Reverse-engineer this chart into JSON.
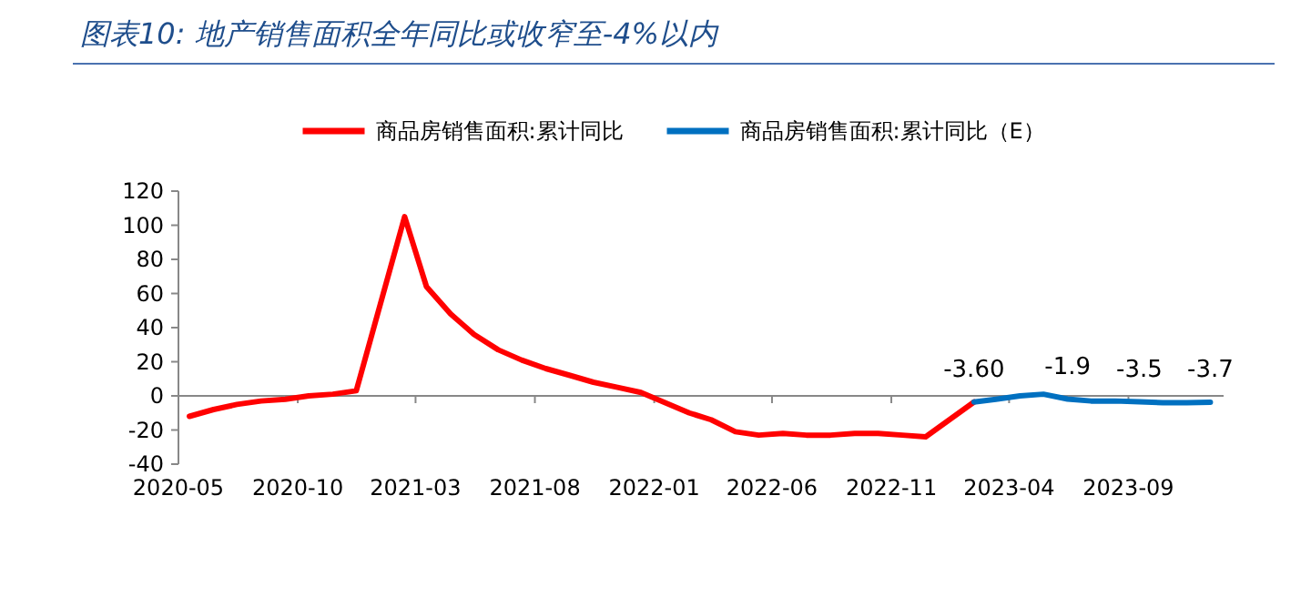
{
  "chart_data": {
    "type": "line",
    "title": "图表10:  地产销售面积全年同比或收窄至-4%以内",
    "xlim": [
      "2020-05",
      "2024-01"
    ],
    "xticks": [
      "2020-05",
      "2020-10",
      "2021-03",
      "2021-08",
      "2022-01",
      "2022-06",
      "2022-11",
      "2023-04",
      "2023-09"
    ],
    "ylim": [
      -40,
      120
    ],
    "yticks": [
      -40,
      -20,
      0,
      20,
      40,
      60,
      80,
      100,
      120
    ],
    "legend": "top",
    "line_style": "solid",
    "marker": "none",
    "series": [
      {
        "name": "商品房销售面积:累计同比",
        "color": "#ff0000",
        "x": [
          "2020-05-15",
          "2020-06-15",
          "2020-07-15",
          "2020-08-15",
          "2020-09-15",
          "2020-10-15",
          "2020-11-15",
          "2020-12-15",
          "2021-02-15",
          "2021-03-15",
          "2021-04-15",
          "2021-05-15",
          "2021-06-15",
          "2021-07-15",
          "2021-08-15",
          "2021-09-15",
          "2021-10-15",
          "2021-11-15",
          "2021-12-15",
          "2022-02-15",
          "2022-03-15",
          "2022-04-15",
          "2022-05-15",
          "2022-06-15",
          "2022-07-15",
          "2022-08-15",
          "2022-09-15",
          "2022-10-15",
          "2022-11-15",
          "2022-12-15",
          "2023-02-15"
        ],
        "values": [
          -12,
          -8,
          -5,
          -3,
          -2,
          0,
          1,
          3,
          105,
          64,
          48,
          36,
          27,
          21,
          16,
          12,
          8,
          5,
          2,
          -10,
          -14,
          -21,
          -23,
          -22,
          -23,
          -23,
          -22,
          -22,
          -23,
          -24,
          -3.6
        ]
      },
      {
        "name": "商品房销售面积:累计同比（E）",
        "color": "#0070c0",
        "x": [
          "2023-02-15",
          "2023-03-15",
          "2023-04-15",
          "2023-05-15",
          "2023-06-15",
          "2023-07-15",
          "2023-08-15",
          "2023-09-15",
          "2023-10-15",
          "2023-11-15",
          "2023-12-15"
        ],
        "values": [
          -3.6,
          -2,
          0,
          1,
          -1.9,
          -3,
          -3,
          -3.5,
          -4,
          -4,
          -3.7
        ]
      }
    ],
    "annotations": [
      {
        "text": "-3.60",
        "x": "2023-02-15",
        "y": -3.6
      },
      {
        "text": "-1.9",
        "x": "2023-06-15",
        "y": -1.9
      },
      {
        "text": "-3.5",
        "x": "2023-09-15",
        "y": -3.5
      },
      {
        "text": "-3.7",
        "x": "2023-12-15",
        "y": -3.7
      }
    ]
  }
}
